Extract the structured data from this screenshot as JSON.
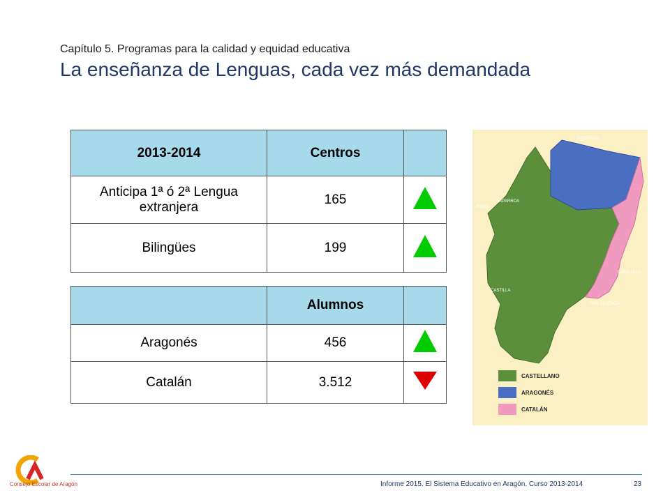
{
  "header": {
    "chapter": "Capítulo 5. Programas para la calidad y equidad educativa",
    "title": "La enseñanza de Lenguas, cada vez más demandada"
  },
  "table_centros": {
    "header": [
      "2013-2014",
      "Centros",
      ""
    ],
    "rows": [
      {
        "label": "Anticipa 1ª ó 2ª Lengua extranjera",
        "value": "165",
        "trend": "up"
      },
      {
        "label": "Bilingües",
        "value": "199",
        "trend": "up"
      }
    ]
  },
  "table_alumnos": {
    "header": [
      "",
      "Alumnos",
      ""
    ],
    "rows": [
      {
        "label": "Aragonés",
        "value": "456",
        "trend": "up"
      },
      {
        "label": "Catalán",
        "value": "3.512",
        "trend": "down"
      }
    ]
  },
  "map": {
    "labels": {
      "ocitania": "OCCITANIA",
      "naparroa": "NAPARROA",
      "rioja": "RIOJA",
      "castilla": "CASTILLA",
      "catalunya": "CATALUNYA",
      "pais_valencia": "PAÍS VALENCIÀ"
    },
    "legend": [
      {
        "label": "CASTELLANO",
        "color": "#5b8f3c"
      },
      {
        "label": "ARAGONÉS",
        "color": "#4a6fc2"
      },
      {
        "label": "CATALÁN",
        "color": "#f19ac0"
      }
    ]
  },
  "footer": {
    "text": "Informe 2015. El Sistema Educativo en Aragón. Curso 2013-2014",
    "page": "23",
    "logo_text": "Consejo Escolar de Aragón"
  },
  "colors": {
    "title": "#1f3864",
    "table_header": "#a6d9ea",
    "trend_up": "#00cc00",
    "trend_down": "#dd0000"
  }
}
